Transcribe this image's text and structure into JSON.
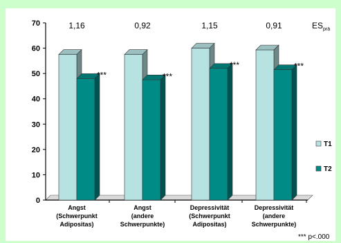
{
  "chart_data": {
    "type": "bar",
    "categories": [
      [
        "Angst",
        "(Schwerpunkt",
        "Adipositas)"
      ],
      [
        "Angst",
        "(andere",
        "Schwerpunkte)"
      ],
      [
        "Depressivität",
        "(Schwerpunkt",
        "Adipositas)"
      ],
      [
        "Depressivität",
        "(andere",
        "Schwerpunkte)"
      ]
    ],
    "series": [
      {
        "name": "T1",
        "values": [
          57.5,
          57.5,
          60,
          59.3
        ],
        "color": "#b7e2e2"
      },
      {
        "name": "T2",
        "values": [
          48,
          47.5,
          52,
          51.5
        ],
        "color": "#008b87"
      }
    ],
    "effect_sizes": [
      "1,16",
      "0,92",
      "1,15",
      "0,91"
    ],
    "effect_size_label": "ES",
    "effect_size_label_sub": "prä",
    "significance": [
      "***",
      "***",
      "***",
      "***"
    ],
    "ylim": [
      0,
      70
    ],
    "yticks": [
      0,
      10,
      20,
      30,
      40,
      50,
      60,
      70
    ],
    "legend_position": "right",
    "footnote": "*** p<.000"
  }
}
